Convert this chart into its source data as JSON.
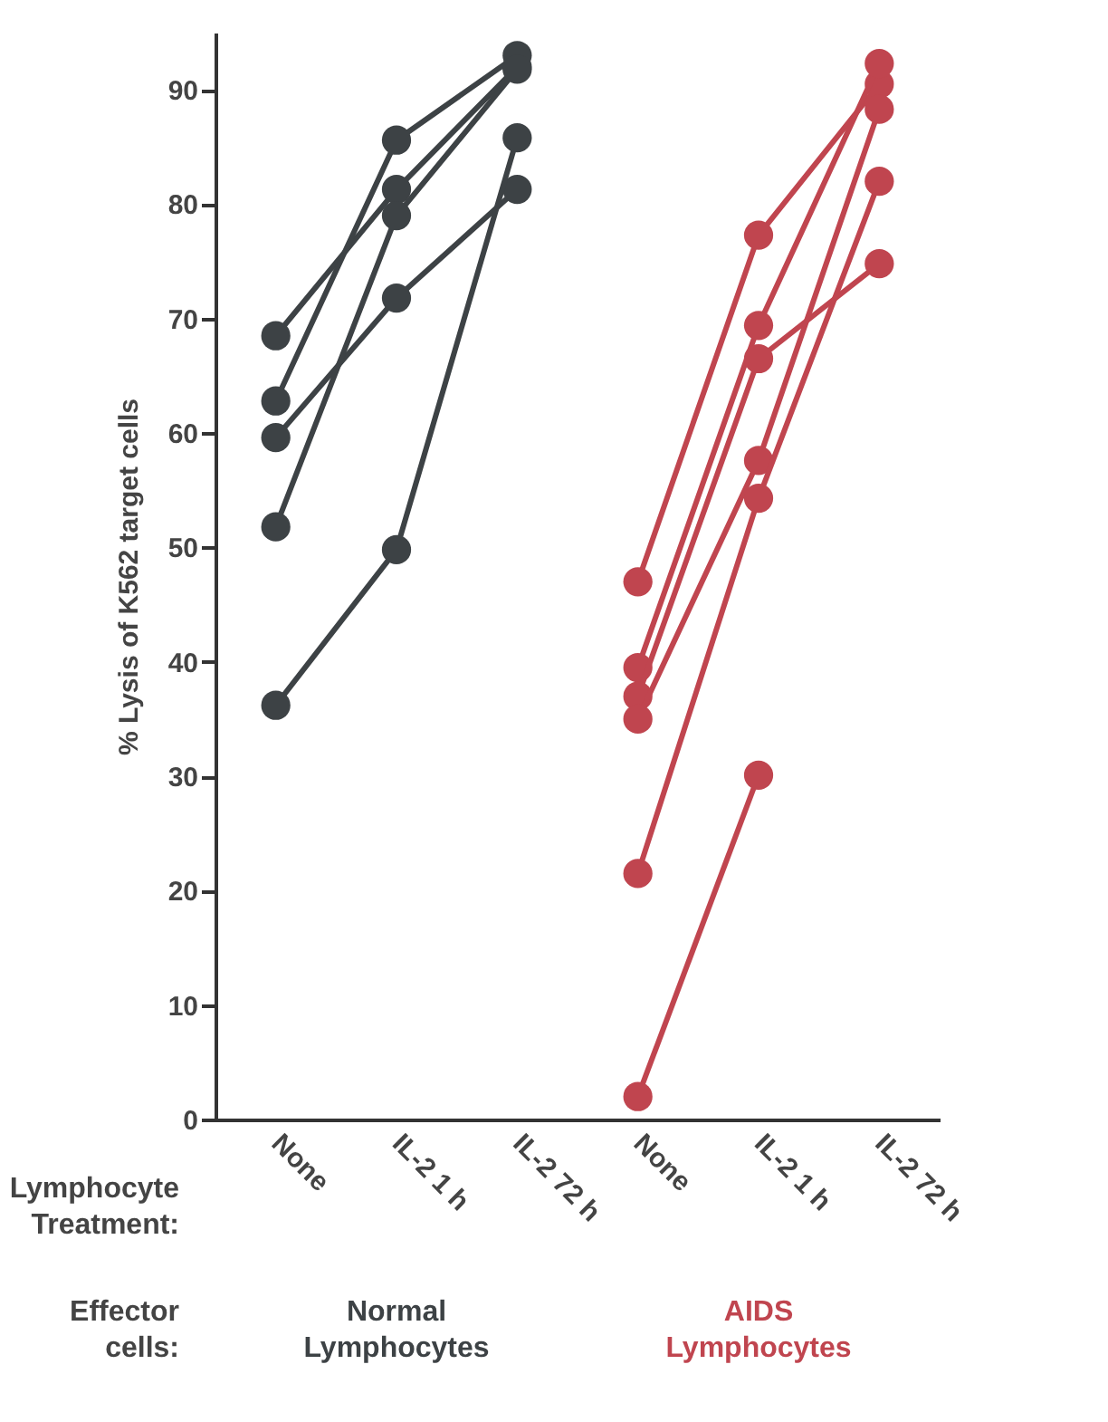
{
  "chart_data": {
    "type": "line",
    "categories": [
      "None",
      "IL-2  1 h",
      "IL-2  72 h",
      "None",
      "IL-2  1 h",
      "IL-2  72 h"
    ],
    "ylabel": "% Lysis of K562 target cells",
    "ylim": [
      0,
      95
    ],
    "yticks": [
      0,
      10,
      20,
      30,
      40,
      50,
      60,
      70,
      80,
      90
    ],
    "marker": "circle",
    "grid": false,
    "annotations": [
      "Lymphocyte Treatment:",
      "Effector cells:",
      "Normal Lymphocytes",
      "AIDS Lymphocytes"
    ],
    "series": [
      {
        "color": "#3d4245",
        "values": [
          68.5,
          81.3,
          92,
          null,
          null,
          null
        ]
      },
      {
        "color": "#3d4245",
        "values": [
          62.8,
          85.6,
          93,
          null,
          null,
          null
        ]
      },
      {
        "color": "#3d4245",
        "values": [
          59.6,
          71.8,
          81.3,
          null,
          null,
          null
        ]
      },
      {
        "color": "#3d4245",
        "values": [
          51.8,
          79,
          91.8,
          null,
          null,
          null
        ]
      },
      {
        "color": "#3d4245",
        "values": [
          36.2,
          49.8,
          85.8,
          null,
          null,
          null
        ]
      },
      {
        "color": "#c0454f",
        "values": [
          null,
          null,
          null,
          47,
          77.3,
          90.5
        ]
      },
      {
        "color": "#c0454f",
        "values": [
          null,
          null,
          null,
          39.5,
          69.4,
          92.3
        ]
      },
      {
        "color": "#c0454f",
        "values": [
          null,
          null,
          null,
          37,
          66.5,
          74.8
        ]
      },
      {
        "color": "#c0454f",
        "values": [
          null,
          null,
          null,
          35,
          57.6,
          88.3
        ]
      },
      {
        "color": "#c0454f",
        "values": [
          null,
          null,
          null,
          21.5,
          54.3,
          82
        ]
      },
      {
        "color": "#c0454f",
        "values": [
          null,
          null,
          null,
          2,
          30.1,
          null
        ]
      }
    ]
  }
}
